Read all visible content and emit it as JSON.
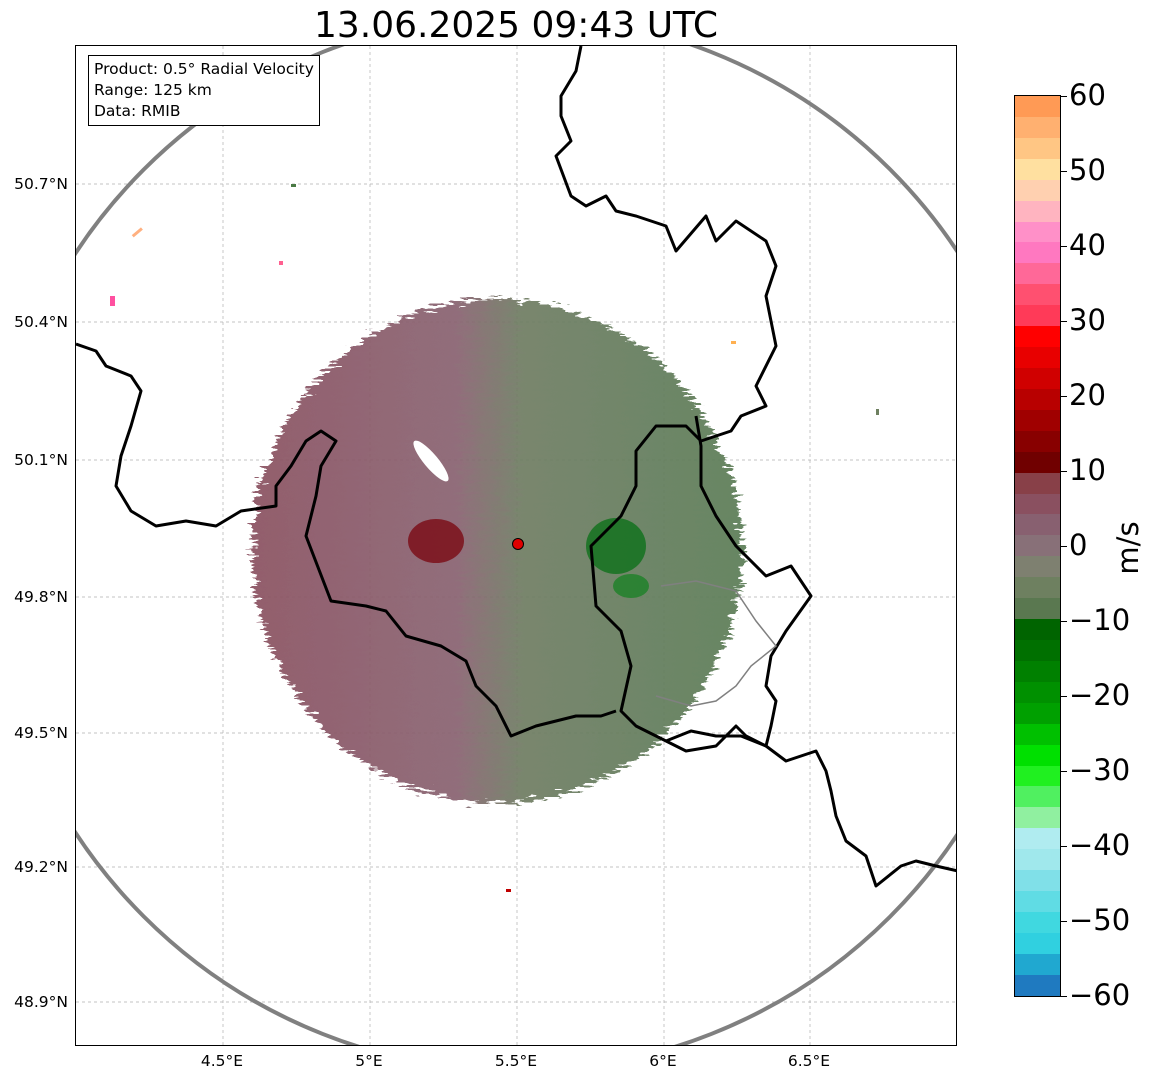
{
  "title": "13.06.2025 09:43 UTC",
  "info": {
    "product": "Product: 0.5° Radial Velocity",
    "range": "Range: 125 km",
    "data": "Data: RMIB"
  },
  "lat_labels": [
    "50.7°N",
    "50.4°N",
    "50.1°N",
    "49.8°N",
    "49.5°N",
    "49.2°N",
    "48.9°N"
  ],
  "lon_labels": [
    "4.5°E",
    "5°E",
    "5.5°E",
    "6°E",
    "6.5°E"
  ],
  "colorbar": {
    "label": "m/s",
    "ticks": [
      "60",
      "50",
      "40",
      "30",
      "20",
      "10",
      "0",
      "−10",
      "−20",
      "−30",
      "−40",
      "−50",
      "−60"
    ],
    "colors": [
      "#ff9a55",
      "#ffb070",
      "#ffc684",
      "#ffe0a0",
      "#ffd0b0",
      "#ffb4c0",
      "#ff90c8",
      "#ff78c0",
      "#ff6898",
      "#ff5070",
      "#ff3a58",
      "#ff0000",
      "#e80000",
      "#d00000",
      "#b80000",
      "#a00000",
      "#880000",
      "#700000",
      "#884048",
      "#8a5060",
      "#886070",
      "#887078",
      "#7e8070",
      "#6e8060",
      "#5a7850",
      "#006400",
      "#007000",
      "#008000",
      "#009000",
      "#00a000",
      "#00c000",
      "#00e000",
      "#20f020",
      "#50f060",
      "#90f0a0",
      "#b0ecf0",
      "#a0e8ec",
      "#80e0e8",
      "#60dce4",
      "#40d8e0",
      "#30d0e0",
      "#20a8d0",
      "#1f7ac0"
    ]
  },
  "chart_data": {
    "type": "radar_ppi",
    "product": "0.5° Radial Velocity",
    "units": "m/s",
    "colorbar_range": [
      -60,
      60
    ],
    "lat_range": [
      48.8,
      50.98
    ],
    "lon_range": [
      4.0,
      7.0
    ],
    "radar_site": {
      "lon": 5.505,
      "lat": 49.914
    },
    "range_km": 125
  },
  "colors": {
    "range_ring": "#808080",
    "border": "#000000",
    "gridline": "#b0b0b0",
    "radar_marker": "#e00000"
  }
}
